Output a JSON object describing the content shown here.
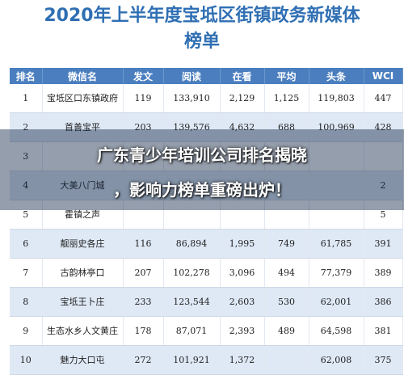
{
  "title_line1": "2020年上半年度宝坻区街镇政务新媒体",
  "title_line2": "榜单",
  "columns": [
    "排名",
    "微信名",
    "发文",
    "阅读",
    "在看",
    "平均",
    "头条",
    "WCI"
  ],
  "rows": [
    [
      "1",
      "宝坻区口东镇政府",
      "119",
      "133,910",
      "2,129",
      "1,125",
      "119,803",
      "447"
    ],
    [
      "2",
      "首善宝平",
      "203",
      "139,576",
      "4,632",
      "688",
      "100,969",
      "428"
    ],
    [
      "3",
      "",
      "",
      "",
      "",
      "",
      "",
      ""
    ],
    [
      "4",
      "大美八门城",
      "",
      "",
      "",
      "",
      "",
      "2"
    ],
    [
      "5",
      "霍镇之声",
      "",
      "",
      "",
      "",
      "",
      "5"
    ],
    [
      "6",
      "靓丽史各庄",
      "116",
      "86,894",
      "1,995",
      "749",
      "61,785",
      "391"
    ],
    [
      "7",
      "古韵林亭口",
      "207",
      "102,278",
      "3,096",
      "494",
      "77,379",
      "389"
    ],
    [
      "8",
      "宝坻王卜庄",
      "233",
      "123,544",
      "2,603",
      "530",
      "62,001",
      "386"
    ],
    [
      "9",
      "生态水乡人文黄庄",
      "178",
      "87,071",
      "2,393",
      "489",
      "64,598",
      "381"
    ],
    [
      "10",
      "魅力大口屯",
      "272",
      "101,921",
      "1,372",
      "",
      "62,008",
      "375"
    ]
  ],
  "headline_line1": "广东青少年培训公司排名揭晓",
  "headline_line2": "，影响力榜单重磅出炉！"
}
